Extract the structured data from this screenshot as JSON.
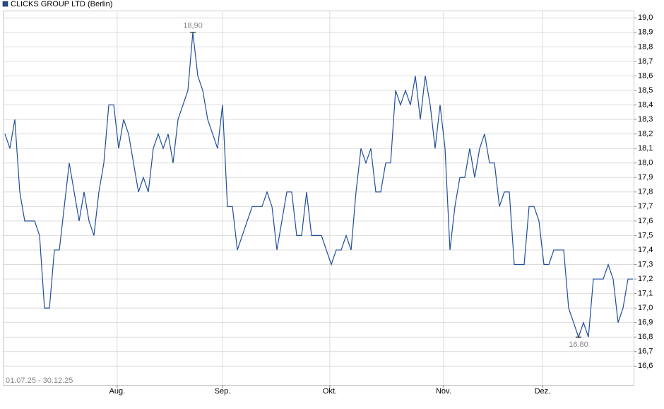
{
  "chart_data": {
    "type": "line",
    "series": [
      {
        "name": "CLICKS GROUP LTD",
        "color": "#1f4e9c",
        "values": [
          18.2,
          18.1,
          18.3,
          17.8,
          17.6,
          17.6,
          17.6,
          17.5,
          17.0,
          17.0,
          17.4,
          17.4,
          17.7,
          18.0,
          17.8,
          17.6,
          17.8,
          17.6,
          17.5,
          17.8,
          18.0,
          18.4,
          18.4,
          18.1,
          18.3,
          18.2,
          18.0,
          17.8,
          17.9,
          17.8,
          18.1,
          18.2,
          18.1,
          18.2,
          18.0,
          18.3,
          18.4,
          18.5,
          18.9,
          18.6,
          18.5,
          18.3,
          18.2,
          18.1,
          18.4,
          17.7,
          17.7,
          17.4,
          17.5,
          17.6,
          17.7,
          17.7,
          17.7,
          17.8,
          17.7,
          17.4,
          17.6,
          17.8,
          17.8,
          17.5,
          17.5,
          17.8,
          17.5,
          17.5,
          17.5,
          17.4,
          17.3,
          17.4,
          17.4,
          17.5,
          17.4,
          17.8,
          18.1,
          18.0,
          18.1,
          17.8,
          17.8,
          18.0,
          18.0,
          18.5,
          18.4,
          18.5,
          18.4,
          18.6,
          18.3,
          18.6,
          18.4,
          18.1,
          18.4,
          18.1,
          17.4,
          17.7,
          17.9,
          17.9,
          18.1,
          17.9,
          18.1,
          18.2,
          18.0,
          18.0,
          17.7,
          17.8,
          17.8,
          17.3,
          17.3,
          17.3,
          17.7,
          17.7,
          17.6,
          17.3,
          17.3,
          17.4,
          17.4,
          17.4,
          17.0,
          16.9,
          16.8,
          16.9,
          16.8,
          17.2,
          17.2,
          17.2,
          17.3,
          17.2,
          16.9,
          17.0,
          17.2,
          17.2
        ]
      }
    ],
    "exchange": "(Berlin)",
    "date_range": "01.07.25 - 30.12.25",
    "xlim": [
      0,
      127
    ],
    "xticks": [
      {
        "value": 22.7,
        "label": "Aug."
      },
      {
        "value": 44,
        "label": "Sep."
      },
      {
        "value": 65.7,
        "label": "Okt."
      },
      {
        "value": 88.7,
        "label": "Nov."
      },
      {
        "value": 108.7,
        "label": "Dez."
      }
    ],
    "ylim": [
      16.47,
      19.05
    ],
    "yticks": [
      {
        "value": 16.6,
        "label": "16,6"
      },
      {
        "value": 16.7,
        "label": "16,7"
      },
      {
        "value": 16.8,
        "label": "16,8"
      },
      {
        "value": 16.9,
        "label": "16,9"
      },
      {
        "value": 17.0,
        "label": "17,0"
      },
      {
        "value": 17.1,
        "label": "17,1"
      },
      {
        "value": 17.2,
        "label": "17,2"
      },
      {
        "value": 17.3,
        "label": "17,3"
      },
      {
        "value": 17.4,
        "label": "17,4"
      },
      {
        "value": 17.5,
        "label": "17,5"
      },
      {
        "value": 17.6,
        "label": "17,6"
      },
      {
        "value": 17.7,
        "label": "17,7"
      },
      {
        "value": 17.8,
        "label": "17,8"
      },
      {
        "value": 17.9,
        "label": "17,9"
      },
      {
        "value": 18.0,
        "label": "18,0"
      },
      {
        "value": 18.1,
        "label": "18,1"
      },
      {
        "value": 18.2,
        "label": "18,2"
      },
      {
        "value": 18.3,
        "label": "18,3"
      },
      {
        "value": 18.4,
        "label": "18,4"
      },
      {
        "value": 18.5,
        "label": "18,5"
      },
      {
        "value": 18.6,
        "label": "18,6"
      },
      {
        "value": 18.7,
        "label": "18,7"
      },
      {
        "value": 18.8,
        "label": "18,8"
      },
      {
        "value": 18.9,
        "label": "18,9"
      },
      {
        "value": 19.0,
        "label": "19,0"
      }
    ],
    "grid": true,
    "annotations": [
      {
        "x": 38,
        "value": 18.9,
        "text": "18,90",
        "position": "above"
      },
      {
        "x": 116,
        "value": 16.8,
        "text": "16,80",
        "position": "below"
      }
    ]
  }
}
